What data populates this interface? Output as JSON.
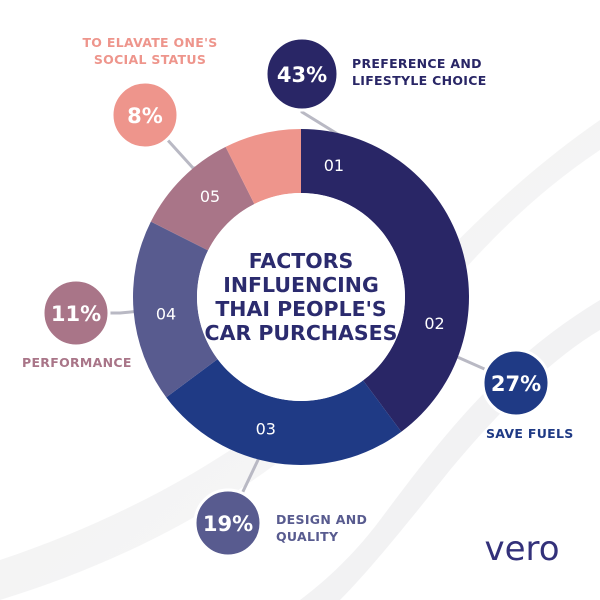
{
  "chart_data": {
    "type": "pie",
    "title": "FACTORS INFLUENCING THAI PEOPLE'S CAR PURCHASES",
    "title_lines": [
      "FACTORS",
      "INFLUENCING",
      "THAI PEOPLE'S",
      "CAR PURCHASES"
    ],
    "slices": [
      {
        "number": "01",
        "value": 43,
        "percent_label": "43%",
        "label_lines": [
          "PREFERENCE AND",
          "LIFESTYLE CHOICE"
        ],
        "color": "#292666"
      },
      {
        "number": "02",
        "value": 27,
        "percent_label": "27%",
        "label_lines": [
          "SAVE FUELS"
        ],
        "color": "#1f3a85"
      },
      {
        "number": "03",
        "value": 19,
        "percent_label": "19%",
        "label_lines": [
          "DESIGN AND",
          "QUALITY"
        ],
        "color": "#585b8f"
      },
      {
        "number": "04",
        "value": 11,
        "percent_label": "11%",
        "label_lines": [
          "PERFORMANCE"
        ],
        "color": "#a97588"
      },
      {
        "number": "05",
        "value": 8,
        "percent_label": "8%",
        "label_lines": [
          "TO ELAVATE ONE'S",
          "SOCIAL STATUS"
        ],
        "color": "#ee958c"
      }
    ]
  },
  "brand": "vero"
}
